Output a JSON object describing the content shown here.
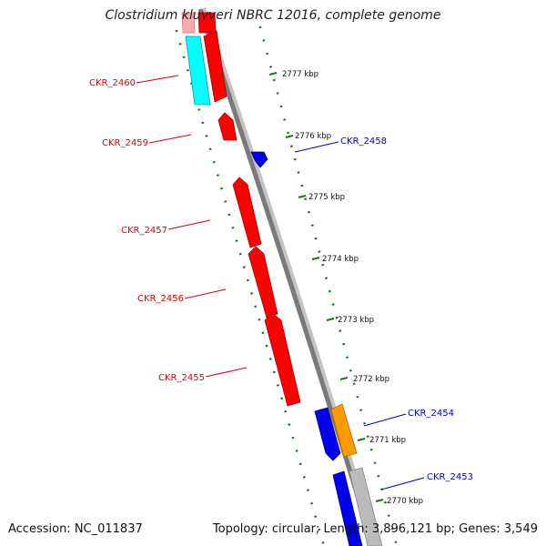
{
  "title": "Clostridium kluyveri NBRC 12016, complete genome",
  "footer": {
    "accession": "Accession: NC_011837",
    "summary": "Topology: circular; Length: 3,896,121 bp; Genes: 3,549"
  },
  "colors": {
    "backbone": "#7a7a7a",
    "backbone_light": "#c4c4c4",
    "tick": "#117a11",
    "forward_gene_label": "#dd0000",
    "reverse_gene_label": "#0000cc",
    "red_gene": "#ff0000",
    "blue_gene": "#0000ee",
    "cyan_gene": "#00ffff",
    "orange_gene": "#ff9900",
    "grey_gene": "#bbbbbb",
    "pink_gene": "#ffaaaa"
  },
  "kbp_labels": [
    "2777 kbp",
    "2776 kbp",
    "2775 kbp",
    "2774 kbp",
    "2773 kbp",
    "2772 kbp",
    "2771 kbp",
    "2770 kbp"
  ],
  "genes_left": [
    {
      "label": "CKR_2460",
      "color": "red_gene"
    },
    {
      "label": "CKR_2459",
      "color": "red_gene"
    },
    {
      "label": "CKR_2457",
      "color": "red_gene"
    },
    {
      "label": "CKR_2456",
      "color": "red_gene"
    },
    {
      "label": "CKR_2455",
      "color": "red_gene"
    }
  ],
  "genes_right": [
    {
      "label": "CKR_2458",
      "color": "blue_gene"
    },
    {
      "label": "CKR_2454",
      "color": "blue_gene"
    },
    {
      "label": "CKR_2453",
      "color": "blue_gene"
    }
  ]
}
